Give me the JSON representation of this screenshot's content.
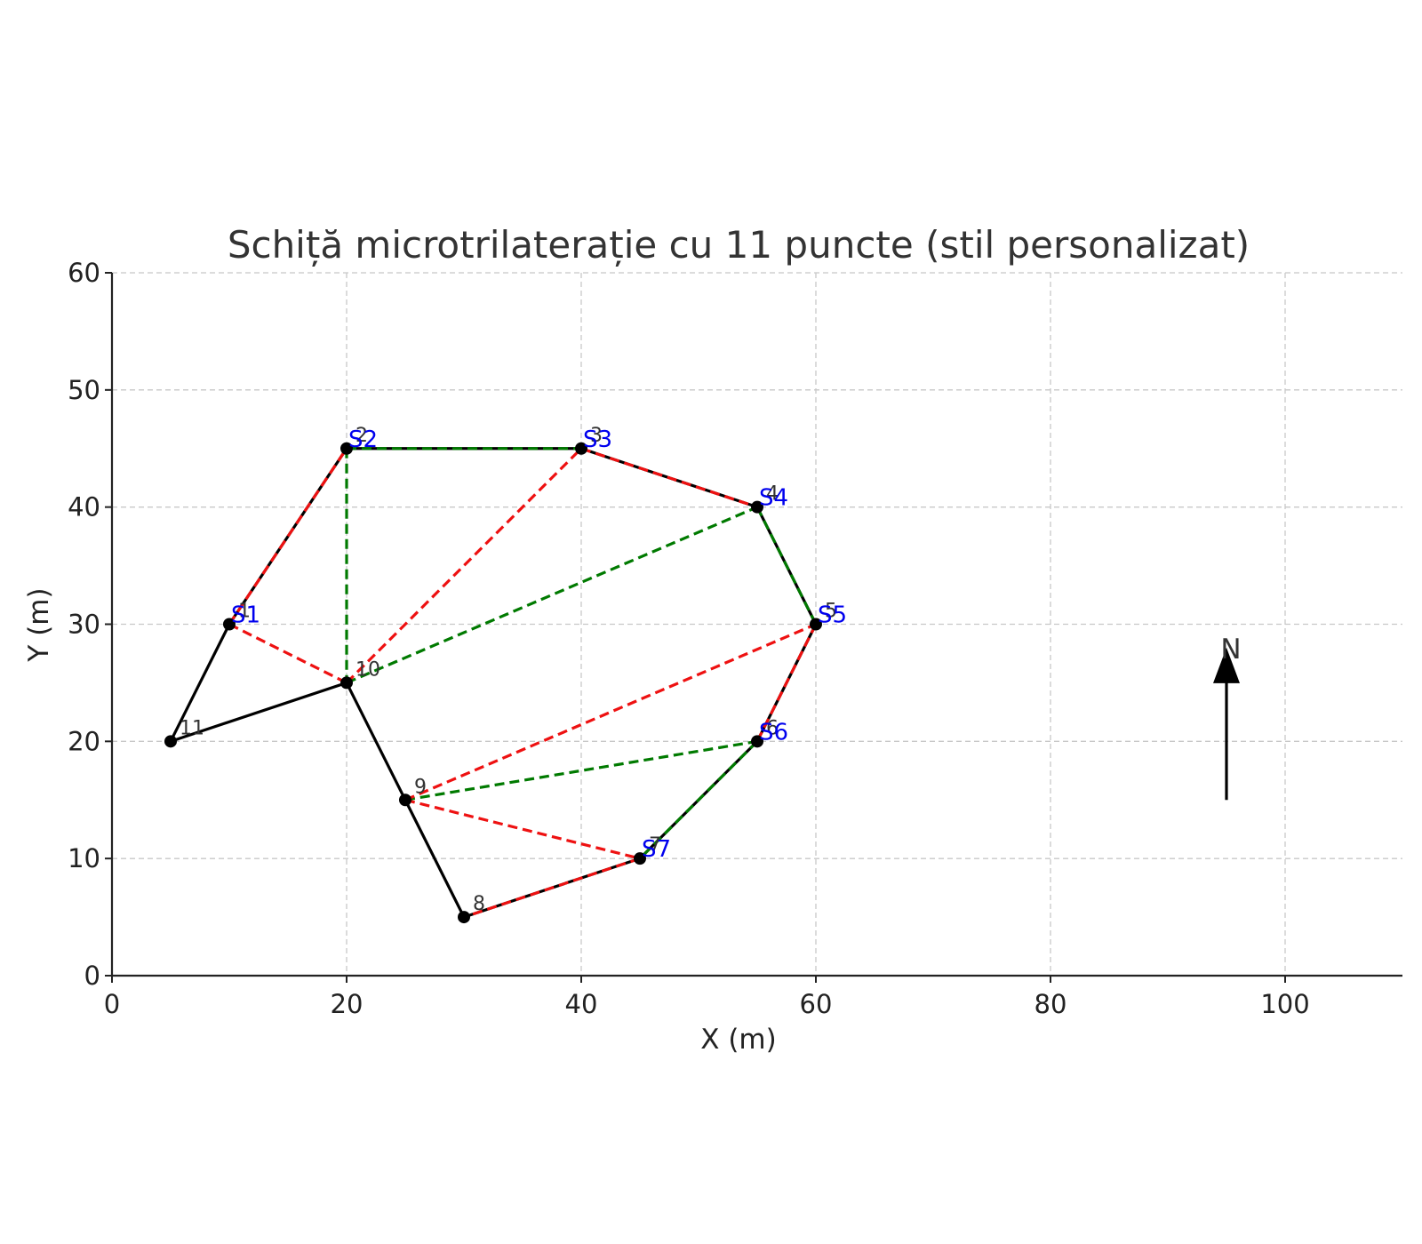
{
  "chart_data": {
    "type": "line",
    "title": "Schiță microtrilaterație cu 11 puncte (stil personalizat)",
    "xlabel": "X (m)",
    "ylabel": "Y (m)",
    "xlim": [
      0,
      110
    ],
    "ylim": [
      0,
      60
    ],
    "xticks": [
      0,
      20,
      40,
      60,
      80,
      100
    ],
    "yticks": [
      0,
      10,
      20,
      30,
      40,
      50,
      60
    ],
    "grid": true,
    "colors": {
      "traverse": "#000000",
      "red_dashed": "#ee1111",
      "green_dashed": "#007a00",
      "station_label": "#0000ee",
      "grid": "#c8c8c8"
    },
    "points": [
      {
        "label": "1",
        "x": 10,
        "y": 30
      },
      {
        "label": "2",
        "x": 20,
        "y": 45
      },
      {
        "label": "3",
        "x": 40,
        "y": 45
      },
      {
        "label": "4",
        "x": 55,
        "y": 40
      },
      {
        "label": "5",
        "x": 60,
        "y": 30
      },
      {
        "label": "6",
        "x": 55,
        "y": 20
      },
      {
        "label": "7",
        "x": 45,
        "y": 10
      },
      {
        "label": "8",
        "x": 30,
        "y": 5
      },
      {
        "label": "9",
        "x": 25,
        "y": 15
      },
      {
        "label": "10",
        "x": 20,
        "y": 25
      },
      {
        "label": "11",
        "x": 5,
        "y": 20
      }
    ],
    "stations": [
      {
        "label": "S1",
        "x": 10,
        "y": 30
      },
      {
        "label": "S2",
        "x": 20,
        "y": 45
      },
      {
        "label": "S3",
        "x": 40,
        "y": 45
      },
      {
        "label": "S4",
        "x": 55,
        "y": 40
      },
      {
        "label": "S5",
        "x": 60,
        "y": 30
      },
      {
        "label": "S6",
        "x": 55,
        "y": 20
      },
      {
        "label": "S7",
        "x": 45,
        "y": 10
      }
    ],
    "traverse_order": [
      "1",
      "2",
      "3",
      "4",
      "5",
      "6",
      "7",
      "8",
      "9",
      "10",
      "11",
      "1"
    ],
    "red_dashed_lines": [
      [
        "1",
        "2"
      ],
      [
        "3",
        "4"
      ],
      [
        "5",
        "6"
      ],
      [
        "7",
        "8"
      ],
      [
        "1",
        "10"
      ],
      [
        "10",
        "3"
      ],
      [
        "9",
        "5"
      ],
      [
        "9",
        "7"
      ]
    ],
    "green_dashed_lines": [
      [
        "2",
        "3"
      ],
      [
        "4",
        "5"
      ],
      [
        "6",
        "7"
      ],
      [
        "2",
        "10"
      ],
      [
        "10",
        "4"
      ],
      [
        "9",
        "6"
      ]
    ],
    "north_arrow": {
      "label": "N",
      "x": 95,
      "y_start": 15,
      "y_end": 28
    }
  }
}
